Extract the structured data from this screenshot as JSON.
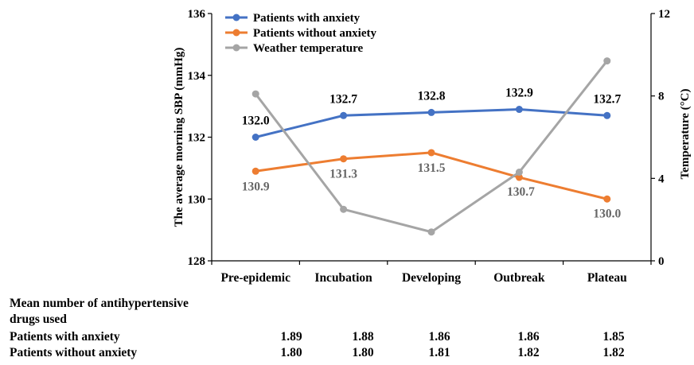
{
  "chart_data": {
    "type": "line",
    "categories": [
      "Pre-epidemic",
      "Incubation",
      "Developing",
      "Outbreak",
      "Plateau"
    ],
    "series": [
      {
        "name": "Patients with anxiety",
        "axis": "left",
        "color": "#4472C4",
        "values": [
          132.0,
          132.7,
          132.8,
          132.9,
          132.7
        ],
        "labels": [
          "132.0",
          "132.7",
          "132.8",
          "132.9",
          "132.7"
        ]
      },
      {
        "name": "Patients without anxiety",
        "axis": "left",
        "color": "#ED7D31",
        "values": [
          130.9,
          131.3,
          131.5,
          130.7,
          130.0
        ],
        "labels": [
          "130.9",
          "131.3",
          "131.5",
          "130.7",
          "130.0"
        ]
      },
      {
        "name": "Weather temperature",
        "axis": "right",
        "color": "#A5A5A5",
        "values": [
          8.1,
          2.5,
          1.4,
          4.3,
          9.7
        ]
      }
    ],
    "ylabel": "The average morning SBP (mmHg)",
    "y2label": "Temperature (°C)",
    "ylim": [
      128,
      136
    ],
    "yticks": [
      "128",
      "130",
      "132",
      "134",
      "136"
    ],
    "y2lim": [
      0,
      12
    ],
    "y2ticks": [
      "0",
      "4",
      "8",
      "12"
    ],
    "legend_position": "top-left"
  },
  "table": {
    "heading_line1": "Mean number of antihypertensive",
    "heading_line2": "drugs used",
    "rows": [
      {
        "label": "Patients with anxiety",
        "values": [
          "1.89",
          "1.88",
          "1.86",
          "1.86",
          "1.85"
        ]
      },
      {
        "label": "Patients without anxiety",
        "values": [
          "1.80",
          "1.80",
          "1.81",
          "1.82",
          "1.82"
        ]
      }
    ]
  }
}
